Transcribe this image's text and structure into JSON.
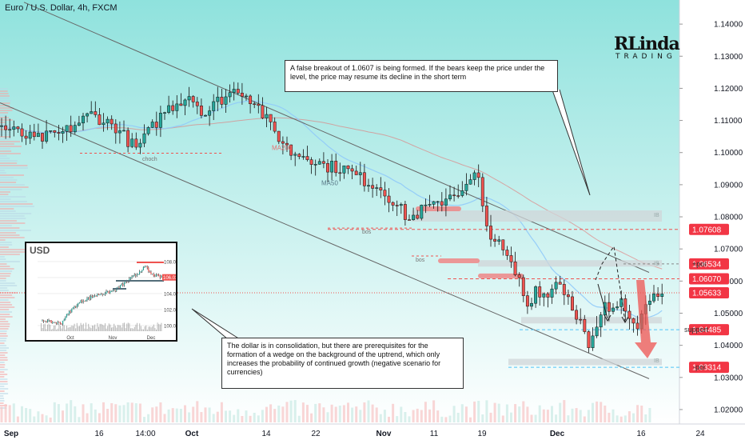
{
  "header": {
    "title": "Euro / U.S. Dollar, 4h, FXCM"
  },
  "logo": {
    "line1": "RLinda",
    "line2": "TRADING"
  },
  "notes": {
    "top": "A false breakout of 1.0607 is being formed. If the bears keep the price under the level, the price may resume its decline in the short term",
    "bottom": "The dollar is in consolidation, but there are prerequisites for the formation of a wedge on the background of the uptrend, which only increases the probability of continued growth (negative scenario for currencies)"
  },
  "colors": {
    "background_top": "#8fe2dd",
    "bull": "#26a69a",
    "bear": "#ef5350",
    "candle": "#111111",
    "channel": "#666666",
    "ma200": "#e57373",
    "ma50": "#90caf9",
    "zone": "#d0d5d8",
    "level_line": "#ef5350",
    "support_line": "#4fc3f7",
    "price_badge": "#f23645"
  },
  "chart_data": [
    {
      "type": "candlestick",
      "title": "Euro / U.S. Dollar, 4h, FXCM",
      "x_ticks": [
        "Sep",
        "16",
        "14:00",
        "Oct",
        "14",
        "22",
        "Nov",
        "11",
        "19",
        "Dec",
        "16",
        "24"
      ],
      "y_ticks": [
        "1.14000",
        "1.13000",
        "1.12000",
        "1.11000",
        "1.10000",
        "1.09000",
        "1.08000",
        "1.07000",
        "1.06000",
        "1.05000",
        "1.04000",
        "1.03000",
        "1.02000"
      ],
      "ylim": [
        1.0155,
        1.1475
      ],
      "close_path": [
        [
          0,
          1.108
        ],
        [
          8,
          1.104
        ],
        [
          15,
          1.106
        ],
        [
          22,
          1.112
        ],
        [
          28,
          1.108
        ],
        [
          33,
          1.101
        ],
        [
          40,
          1.113
        ],
        [
          46,
          1.118
        ],
        [
          50,
          1.112
        ],
        [
          53,
          1.116
        ],
        [
          58,
          1.12
        ],
        [
          62,
          1.116
        ],
        [
          66,
          1.108
        ],
        [
          71,
          1.1
        ],
        [
          75,
          1.099
        ],
        [
          79,
          1.096
        ],
        [
          84,
          1.095
        ],
        [
          88,
          1.092
        ],
        [
          93,
          1.089
        ],
        [
          96,
          1.085
        ],
        [
          100,
          1.079
        ],
        [
          104,
          1.083
        ],
        [
          106,
          1.083
        ],
        [
          110,
          1.087
        ],
        [
          114,
          1.089
        ],
        [
          116,
          1.093
        ],
        [
          117,
          1.091
        ],
        [
          118,
          1.082
        ],
        [
          119,
          1.077
        ],
        [
          121,
          1.073
        ],
        [
          124,
          1.067
        ],
        [
          127,
          1.06
        ],
        [
          129,
          1.052
        ],
        [
          131,
          1.058
        ],
        [
          134,
          1.055
        ],
        [
          136,
          1.061
        ],
        [
          139,
          1.055
        ],
        [
          141,
          1.05
        ],
        [
          143,
          1.044
        ],
        [
          144,
          1.038
        ],
        [
          146,
          1.045
        ],
        [
          148,
          1.052
        ],
        [
          150,
          1.05
        ],
        [
          152,
          1.055
        ],
        [
          154,
          1.05
        ],
        [
          156,
          1.047
        ],
        [
          158,
          1.052
        ],
        [
          160,
          1.058
        ],
        [
          162,
          1.056
        ]
      ],
      "price_labels": [
        "1.07608",
        "1.06534",
        "1.06070",
        "1.05633",
        "1.04485",
        "1.03314"
      ],
      "level_labels": [
        "+poi",
        "support",
        "-poi"
      ],
      "annotations": [
        "MA200",
        "MA50",
        "choch",
        "bos",
        "bos"
      ],
      "zone_labels": [
        "IB",
        "IB",
        "IB"
      ]
    },
    {
      "type": "candlestick",
      "title": "USD",
      "x_ticks": [
        "Oct",
        "Nov",
        "Dec"
      ],
      "y_ticks": [
        "108.00",
        "106.00",
        "104.00",
        "102.00",
        "100.00"
      ],
      "price_labels": [
        "106.03"
      ],
      "ylim": [
        99.3,
        108.9
      ],
      "close_path": [
        [
          0,
          100.7
        ],
        [
          8,
          100.4
        ],
        [
          15,
          100.3
        ],
        [
          18,
          101.1
        ],
        [
          24,
          102.2
        ],
        [
          30,
          103.0
        ],
        [
          37,
          103.5
        ],
        [
          44,
          103.9
        ],
        [
          50,
          104.1
        ],
        [
          56,
          104.4
        ],
        [
          60,
          104.8
        ],
        [
          64,
          105.3
        ],
        [
          70,
          106.0
        ],
        [
          74,
          106.4
        ],
        [
          78,
          107.1
        ],
        [
          81,
          107.3
        ],
        [
          85,
          106.4
        ],
        [
          90,
          106.2
        ],
        [
          95,
          106.0
        ]
      ]
    }
  ]
}
